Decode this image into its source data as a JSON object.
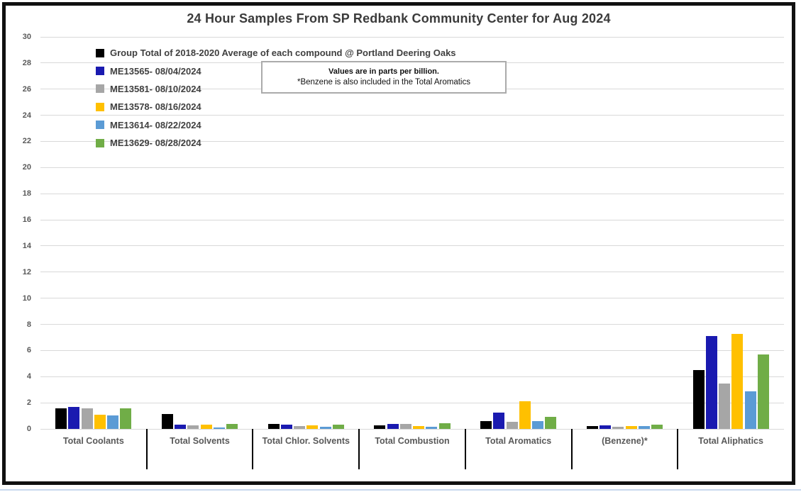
{
  "chart": {
    "title": "24 Hour Samples From SP Redbank Community Center for Aug 2024"
  },
  "note": {
    "line1": "Values are in parts per billion.",
    "line2": "*Benzene is also included in the Total Aromatics"
  },
  "colors": {
    "grid": "#d9d9d9",
    "separator": "#000000",
    "axis_label": "#595959",
    "legend_text": "#404040",
    "frame_border": "#111111",
    "note_border": "#ababab",
    "bottom_strip": "#c9d9ee"
  },
  "chart_data": {
    "type": "bar",
    "title": "24 Hour Samples From SP Redbank Community Center for Aug 2024",
    "unit": "parts per billion",
    "xlabel": "",
    "ylabel": "",
    "ylim": [
      0,
      30
    ],
    "ytick_step": 2,
    "grid": true,
    "legend_position": "top-left-vertical",
    "categories": [
      "Total Coolants",
      "Total Solvents",
      "Total Chlor. Solvents",
      "Total Combustion",
      "Total Aromatics",
      "(Benzene)*",
      "Total Aliphatics"
    ],
    "series": [
      {
        "name": "Group Total of 2018-2020 Average of each compound @ Portland Deering Oaks",
        "color": "#000000",
        "values": [
          1.55,
          1.15,
          0.4,
          0.26,
          0.6,
          0.2,
          4.5
        ]
      },
      {
        "name": "ME13565- 08/04/2024",
        "color": "#1a1ab0",
        "values": [
          1.7,
          0.3,
          0.35,
          0.4,
          1.25,
          0.27,
          7.1
        ]
      },
      {
        "name": "ME13581- 08/10/2024",
        "color": "#a6a6a6",
        "values": [
          1.6,
          0.28,
          0.24,
          0.37,
          0.55,
          0.19,
          3.45
        ]
      },
      {
        "name": "ME13578- 08/16/2024",
        "color": "#ffc000",
        "values": [
          1.1,
          0.3,
          0.26,
          0.2,
          2.1,
          0.24,
          7.25
        ]
      },
      {
        "name": "ME13614- 08/22/2024",
        "color": "#5b9bd5",
        "values": [
          1.05,
          0.13,
          0.17,
          0.17,
          0.6,
          0.2,
          2.9
        ]
      },
      {
        "name": "ME13629- 08/28/2024",
        "color": "#70ad47",
        "values": [
          1.6,
          0.37,
          0.31,
          0.46,
          0.9,
          0.3,
          5.7
        ]
      }
    ]
  }
}
